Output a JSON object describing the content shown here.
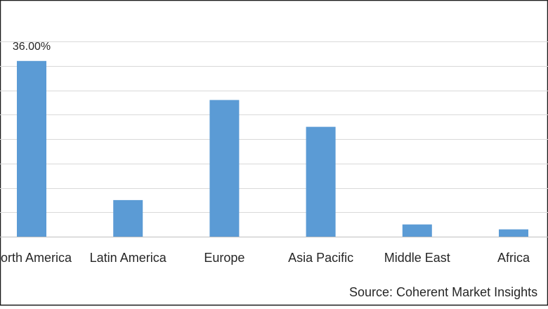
{
  "chart_data": {
    "type": "bar",
    "categories": [
      "North America",
      "Latin America",
      "Europe",
      "Asia Pacific",
      "Middle East",
      "Africa"
    ],
    "values": [
      36.0,
      7.5,
      28.0,
      22.5,
      2.5,
      1.5
    ],
    "data_labels": [
      "36.00%",
      "",
      "",
      "",
      "",
      ""
    ],
    "ylim": [
      0,
      40
    ],
    "grid": true,
    "legend": "none",
    "bar_color": "#5B9BD5",
    "grid_color": "#D9D9D9",
    "source": "Source: Coherent Market Insights"
  }
}
